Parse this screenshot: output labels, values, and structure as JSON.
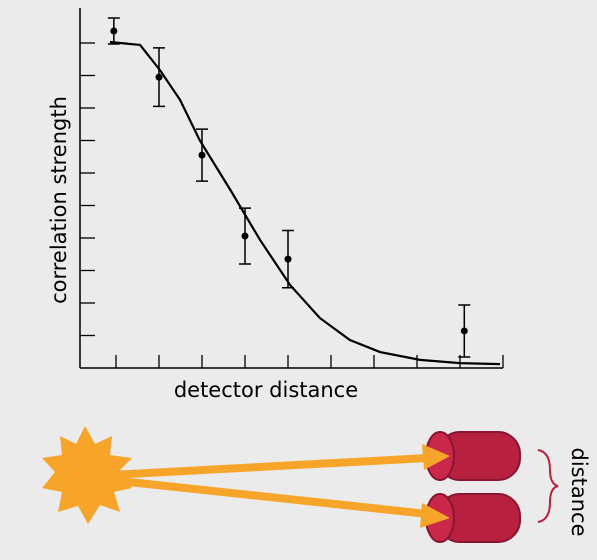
{
  "chart_data": {
    "type": "scatter",
    "x_label": "detector distance",
    "y_label": "correlation strength",
    "xlim": [
      0,
      10
    ],
    "ylim": [
      0,
      11
    ],
    "xticks": [
      1,
      2,
      3,
      4,
      5,
      6,
      7,
      8,
      9,
      10
    ],
    "yticks": [
      1,
      2,
      3,
      4,
      5,
      6,
      7,
      8,
      9,
      10
    ],
    "color": "#000000",
    "points": {
      "x": [
        0.95,
        2,
        3,
        4,
        5,
        9.1
      ],
      "values": [
        10.37,
        8.95,
        6.55,
        4.06,
        3.35,
        1.14
      ],
      "errors": [
        0.4,
        0.9,
        0.8,
        0.86,
        0.88,
        0.8
      ]
    },
    "fit": {
      "x": [
        0.86,
        1.56,
        2.02,
        2.49,
        2.95,
        3.65,
        4.35,
        5.05,
        5.74,
        6.44,
        7.14,
        8.07,
        9,
        9.93
      ],
      "values": [
        10.03,
        9.94,
        9.17,
        8.25,
        7.0,
        5.5,
        3.94,
        2.55,
        1.54,
        0.86,
        0.49,
        0.25,
        0.15,
        0.12
      ]
    }
  },
  "diagram": {
    "label": "distance"
  }
}
